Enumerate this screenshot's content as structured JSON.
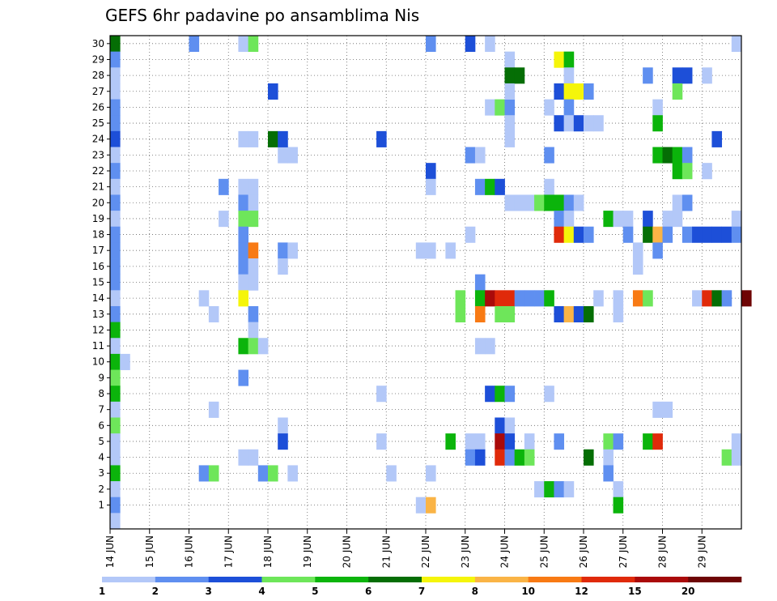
{
  "chart_data": {
    "type": "heatmap",
    "title": "GEFS 6hr padavine po ansamblima Nis",
    "xlabel": "",
    "ylabel": "",
    "x_ticks": [
      "14 JUN",
      "15 JUN",
      "16 JUN",
      "17 JUN",
      "18 JUN",
      "19 JUN",
      "20 JUN",
      "21 JUN",
      "22 JUN",
      "23 JUN",
      "24 JUN",
      "25 JUN",
      "26 JUN",
      "27 JUN",
      "28 JUN",
      "29 JUN"
    ],
    "y_ticks": [
      "1",
      "2",
      "3",
      "4",
      "5",
      "6",
      "7",
      "8",
      "9",
      "10",
      "11",
      "12",
      "13",
      "14",
      "15",
      "16",
      "17",
      "18",
      "19",
      "20",
      "21",
      "22",
      "23",
      "24",
      "25",
      "26",
      "27",
      "28",
      "29",
      "30"
    ],
    "x_unit": "6h steps from 14 JUN 00Z",
    "colorbar": {
      "labels": [
        "1",
        "2",
        "3",
        "4",
        "5",
        "6",
        "7",
        "8",
        "10",
        "12",
        "15",
        "20"
      ],
      "colors": [
        "#b3c8f8",
        "#5f8ff0",
        "#1d4fd8",
        "#6ee65a",
        "#0bb40b",
        "#056e05",
        "#f5f50a",
        "#fab446",
        "#f87a14",
        "#e02a0a",
        "#aa0a0a",
        "#6e0505"
      ]
    },
    "grid": true,
    "cells": [
      [
        0,
        30,
        5
      ],
      [
        0,
        29,
        1
      ],
      [
        0,
        28,
        0
      ],
      [
        0,
        27,
        0
      ],
      [
        0,
        26,
        1
      ],
      [
        0,
        25,
        1
      ],
      [
        0,
        24,
        2
      ],
      [
        0,
        23,
        0
      ],
      [
        0,
        22,
        1
      ],
      [
        0,
        21,
        0
      ],
      [
        0,
        20,
        1
      ],
      [
        0,
        19,
        0
      ],
      [
        0,
        18,
        1
      ],
      [
        0,
        17,
        1
      ],
      [
        0,
        16,
        1
      ],
      [
        0,
        15,
        1
      ],
      [
        0,
        14,
        0
      ],
      [
        0,
        13,
        1
      ],
      [
        0,
        12,
        4
      ],
      [
        0,
        11,
        0
      ],
      [
        0,
        10,
        4
      ],
      [
        0,
        9,
        3
      ],
      [
        0,
        8,
        4
      ],
      [
        0,
        7,
        0
      ],
      [
        0,
        6,
        3
      ],
      [
        0,
        5,
        0
      ],
      [
        0,
        4,
        0
      ],
      [
        0,
        3,
        4
      ],
      [
        0,
        2,
        0
      ],
      [
        0,
        1,
        1
      ],
      [
        0,
        0,
        0
      ],
      [
        1,
        10,
        0
      ],
      [
        8,
        30,
        1
      ],
      [
        9,
        14,
        0
      ],
      [
        9,
        3,
        1
      ],
      [
        10,
        13,
        0
      ],
      [
        10,
        7,
        0
      ],
      [
        10,
        3,
        3
      ],
      [
        11,
        19,
        0
      ],
      [
        11,
        21,
        1
      ],
      [
        13,
        30,
        0
      ],
      [
        13,
        24,
        0
      ],
      [
        13,
        4,
        0
      ],
      [
        14,
        30,
        3
      ],
      [
        14,
        4,
        0
      ],
      [
        13,
        21,
        0
      ],
      [
        13,
        20,
        1
      ],
      [
        13,
        19,
        3
      ],
      [
        13,
        18,
        1
      ],
      [
        13,
        17,
        1
      ],
      [
        13,
        16,
        1
      ],
      [
        13,
        15,
        0
      ],
      [
        13,
        14,
        6
      ],
      [
        13,
        11,
        4
      ],
      [
        13,
        9,
        1
      ],
      [
        14,
        24,
        0
      ],
      [
        14,
        21,
        0
      ],
      [
        14,
        20,
        0
      ],
      [
        14,
        19,
        3
      ],
      [
        14,
        17,
        8
      ],
      [
        14,
        16,
        0
      ],
      [
        14,
        15,
        0
      ],
      [
        14,
        13,
        1
      ],
      [
        14,
        12,
        0
      ],
      [
        14,
        11,
        3
      ],
      [
        15,
        11,
        0
      ],
      [
        15,
        3,
        1
      ],
      [
        16,
        27,
        2
      ],
      [
        16,
        24,
        5
      ],
      [
        16,
        3,
        3
      ],
      [
        17,
        23,
        0
      ],
      [
        18,
        23,
        0
      ],
      [
        17,
        24,
        2
      ],
      [
        17,
        17,
        1
      ],
      [
        17,
        16,
        0
      ],
      [
        17,
        6,
        0
      ],
      [
        17,
        5,
        2
      ],
      [
        18,
        17,
        0
      ],
      [
        18,
        3,
        0
      ],
      [
        27,
        24,
        2
      ],
      [
        27,
        8,
        0
      ],
      [
        27,
        5,
        0
      ],
      [
        28,
        3,
        0
      ],
      [
        31,
        17,
        0
      ],
      [
        31,
        1,
        0
      ],
      [
        32,
        17,
        0
      ],
      [
        32,
        30,
        1
      ],
      [
        32,
        22,
        2
      ],
      [
        32,
        21,
        0
      ],
      [
        32,
        3,
        0
      ],
      [
        32,
        1,
        7
      ],
      [
        34,
        17,
        0
      ],
      [
        34,
        5,
        4
      ],
      [
        35,
        14,
        3
      ],
      [
        35,
        13,
        3
      ],
      [
        36,
        30,
        2
      ],
      [
        36,
        23,
        1
      ],
      [
        36,
        18,
        0
      ],
      [
        36,
        5,
        0
      ],
      [
        36,
        4,
        1
      ],
      [
        37,
        23,
        0
      ],
      [
        37,
        21,
        1
      ],
      [
        37,
        15,
        1
      ],
      [
        37,
        14,
        4
      ],
      [
        37,
        13,
        8
      ],
      [
        37,
        11,
        0
      ],
      [
        37,
        5,
        0
      ],
      [
        37,
        4,
        2
      ],
      [
        38,
        30,
        0
      ],
      [
        38,
        26,
        0
      ],
      [
        38,
        21,
        4
      ],
      [
        38,
        14,
        10
      ],
      [
        38,
        11,
        0
      ],
      [
        38,
        8,
        2
      ],
      [
        39,
        26,
        3
      ],
      [
        39,
        21,
        2
      ],
      [
        39,
        14,
        9
      ],
      [
        39,
        13,
        3
      ],
      [
        39,
        8,
        4
      ],
      [
        39,
        6,
        2
      ],
      [
        39,
        5,
        10
      ],
      [
        39,
        4,
        9
      ],
      [
        40,
        29,
        0
      ],
      [
        40,
        28,
        5
      ],
      [
        40,
        26,
        1
      ],
      [
        40,
        14,
        9
      ],
      [
        40,
        13,
        3
      ],
      [
        40,
        8,
        1
      ],
      [
        40,
        6,
        0
      ],
      [
        40,
        5,
        2
      ],
      [
        40,
        4,
        1
      ],
      [
        40,
        27,
        0
      ],
      [
        40,
        25,
        0
      ],
      [
        40,
        24,
        0
      ],
      [
        40,
        20,
        0
      ],
      [
        41,
        28,
        5
      ],
      [
        41,
        20,
        0
      ],
      [
        41,
        14,
        1
      ],
      [
        41,
        4,
        4
      ],
      [
        42,
        20,
        0
      ],
      [
        42,
        14,
        1
      ],
      [
        42,
        5,
        0
      ],
      [
        42,
        4,
        3
      ],
      [
        43,
        20,
        3
      ],
      [
        43,
        14,
        1
      ],
      [
        43,
        2,
        0
      ],
      [
        44,
        26,
        0
      ],
      [
        44,
        23,
        1
      ],
      [
        44,
        21,
        0
      ],
      [
        44,
        20,
        4
      ],
      [
        44,
        14,
        4
      ],
      [
        44,
        8,
        0
      ],
      [
        44,
        2,
        4
      ],
      [
        45,
        29,
        6
      ],
      [
        45,
        27,
        2
      ],
      [
        45,
        25,
        2
      ],
      [
        45,
        20,
        4
      ],
      [
        45,
        19,
        1
      ],
      [
        45,
        18,
        9
      ],
      [
        45,
        13,
        2
      ],
      [
        45,
        5,
        1
      ],
      [
        45,
        2,
        1
      ],
      [
        46,
        29,
        4
      ],
      [
        46,
        28,
        0
      ],
      [
        46,
        27,
        6
      ],
      [
        46,
        26,
        1
      ],
      [
        46,
        25,
        0
      ],
      [
        46,
        20,
        1
      ],
      [
        46,
        19,
        0
      ],
      [
        46,
        18,
        6
      ],
      [
        46,
        13,
        7
      ],
      [
        46,
        2,
        0
      ],
      [
        47,
        27,
        6
      ],
      [
        47,
        25,
        2
      ],
      [
        47,
        20,
        0
      ],
      [
        47,
        18,
        2
      ],
      [
        47,
        13,
        2
      ],
      [
        48,
        27,
        1
      ],
      [
        48,
        25,
        0
      ],
      [
        48,
        18,
        1
      ],
      [
        48,
        13,
        5
      ],
      [
        48,
        4,
        5
      ],
      [
        49,
        25,
        0
      ],
      [
        49,
        14,
        0
      ],
      [
        50,
        19,
        4
      ],
      [
        50,
        5,
        3
      ],
      [
        50,
        4,
        0
      ],
      [
        50,
        3,
        1
      ],
      [
        51,
        19,
        0
      ],
      [
        51,
        14,
        0
      ],
      [
        51,
        13,
        0
      ],
      [
        51,
        5,
        1
      ],
      [
        51,
        2,
        0
      ],
      [
        51,
        1,
        4
      ],
      [
        52,
        19,
        0
      ],
      [
        52,
        18,
        1
      ],
      [
        53,
        17,
        0
      ],
      [
        53,
        16,
        0
      ],
      [
        53,
        14,
        8
      ],
      [
        54,
        28,
        1
      ],
      [
        54,
        19,
        2
      ],
      [
        54,
        18,
        5
      ],
      [
        54,
        14,
        3
      ],
      [
        54,
        5,
        4
      ],
      [
        55,
        26,
        0
      ],
      [
        55,
        25,
        4
      ],
      [
        55,
        23,
        4
      ],
      [
        55,
        18,
        7
      ],
      [
        55,
        17,
        1
      ],
      [
        55,
        7,
        0
      ],
      [
        55,
        5,
        9
      ],
      [
        56,
        23,
        5
      ],
      [
        56,
        19,
        0
      ],
      [
        56,
        18,
        1
      ],
      [
        56,
        7,
        0
      ],
      [
        57,
        28,
        2
      ],
      [
        57,
        27,
        3
      ],
      [
        57,
        23,
        4
      ],
      [
        57,
        22,
        4
      ],
      [
        57,
        20,
        0
      ],
      [
        57,
        19,
        0
      ],
      [
        58,
        28,
        2
      ],
      [
        58,
        23,
        1
      ],
      [
        58,
        22,
        3
      ],
      [
        58,
        20,
        1
      ],
      [
        58,
        18,
        1
      ],
      [
        59,
        18,
        2
      ],
      [
        59,
        14,
        0
      ],
      [
        60,
        28,
        0
      ],
      [
        60,
        22,
        0
      ],
      [
        60,
        18,
        2
      ],
      [
        60,
        14,
        9
      ],
      [
        61,
        24,
        2
      ],
      [
        61,
        18,
        2
      ],
      [
        61,
        14,
        5
      ],
      [
        62,
        18,
        2
      ],
      [
        62,
        14,
        1
      ],
      [
        62,
        4,
        3
      ],
      [
        63,
        30,
        0
      ],
      [
        63,
        19,
        0
      ],
      [
        63,
        18,
        1
      ],
      [
        63,
        5,
        0
      ],
      [
        63,
        4,
        0
      ],
      [
        64,
        14,
        11
      ]
    ]
  }
}
